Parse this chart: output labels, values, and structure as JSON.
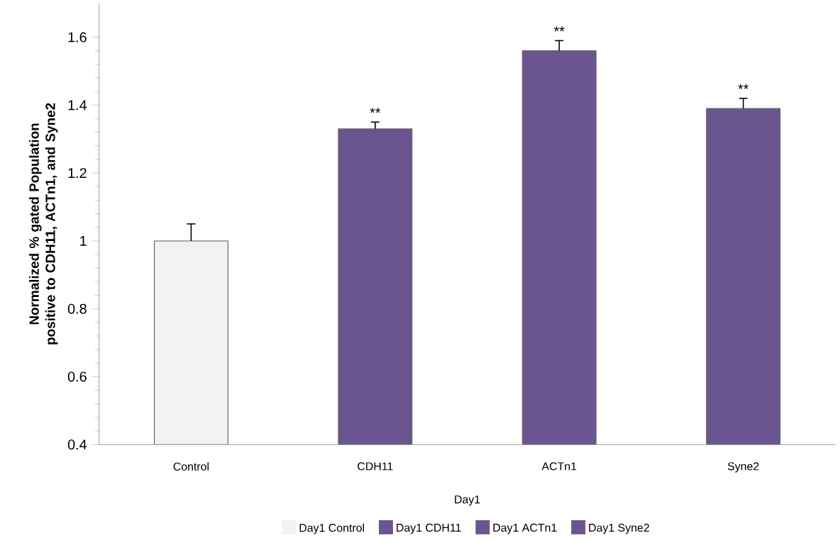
{
  "chart_data": {
    "type": "bar",
    "ylabel": "Normalized % gated Population positive to CDH11, ACTn1, and Syne2",
    "xlabel": "Day1",
    "categories": [
      "Control",
      "CDH11",
      "ACTn1",
      "Syne2"
    ],
    "series": [
      {
        "name": "Day1 Control",
        "color": "#f2f2f2",
        "values": [
          1.0,
          null,
          null,
          null
        ],
        "errors": [
          0.05,
          null,
          null,
          null
        ]
      },
      {
        "name": "Day1 CDH11",
        "color": "#6b5591",
        "values": [
          null,
          1.33,
          null,
          null
        ],
        "errors": [
          null,
          0.02,
          null,
          null
        ]
      },
      {
        "name": "Day1 ACTn1",
        "color": "#6b5591",
        "values": [
          null,
          null,
          1.56,
          null
        ],
        "errors": [
          null,
          null,
          0.03,
          null
        ]
      },
      {
        "name": "Day1 Syne2",
        "color": "#6b5591",
        "values": [
          null,
          null,
          null,
          1.39
        ],
        "errors": [
          null,
          null,
          null,
          0.03
        ]
      }
    ],
    "ylim": [
      0.4,
      1.7
    ],
    "yticks": [
      0.4,
      0.6,
      0.8,
      1,
      1.2,
      1.4,
      1.6
    ],
    "annotations": [
      {
        "text": "**",
        "x": "CDH11",
        "y": 1.35
      },
      {
        "text": "**",
        "x": "ACTn1",
        "y": 1.59
      },
      {
        "text": "**",
        "x": "Syne2",
        "y": 1.42
      }
    ],
    "legend": "bottom",
    "grid": false
  }
}
